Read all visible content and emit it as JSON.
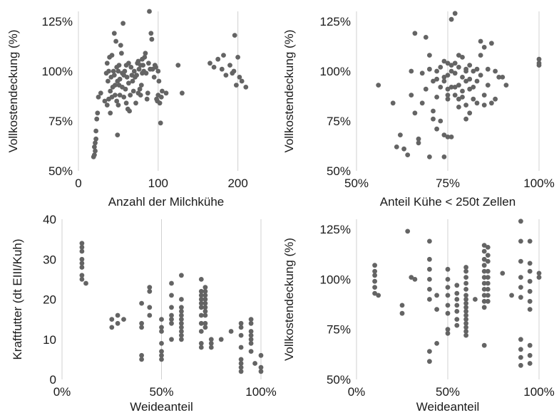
{
  "chart_data": [
    {
      "type": "scatter",
      "xlabel": "Anzahl der Milchkühe",
      "ylabel": "Vollkostendeckung  (%)",
      "xlim": [
        0,
        220
      ],
      "ylim": [
        50,
        130
      ],
      "xticks": [
        0,
        100,
        200
      ],
      "xtick_labels": [
        "0",
        "100",
        "200"
      ],
      "yticks": [
        50,
        75,
        100,
        125
      ],
      "ytick_labels": [
        "50%",
        "75%",
        "100%",
        "125%"
      ],
      "grid": "vertical",
      "series": [
        {
          "x": [
            19,
            20,
            20,
            21,
            21,
            22,
            22,
            23,
            24,
            25,
            28,
            33,
            35,
            36,
            36,
            37,
            38,
            38,
            39,
            40,
            40,
            41,
            42,
            42,
            43,
            44,
            45,
            45,
            46,
            46,
            47,
            48,
            48,
            49,
            49,
            50,
            50,
            51,
            51,
            52,
            52,
            53,
            54,
            55,
            55,
            56,
            57,
            57,
            58,
            59,
            60,
            60,
            61,
            62,
            63,
            63,
            64,
            65,
            66,
            67,
            68,
            69,
            70,
            71,
            72,
            73,
            74,
            75,
            75,
            76,
            77,
            78,
            78,
            79,
            80,
            80,
            81,
            82,
            83,
            84,
            85,
            86,
            87,
            88,
            89,
            90,
            91,
            92,
            93,
            95,
            96,
            97,
            98,
            99,
            100,
            100,
            101,
            102,
            103,
            104,
            105,
            110,
            125,
            130,
            165,
            170,
            175,
            180,
            182,
            185,
            190,
            193,
            195,
            196,
            198,
            200,
            202,
            205,
            210
          ],
          "y": [
            57,
            58,
            62,
            60,
            64,
            66,
            70,
            76,
            79,
            87,
            89,
            85,
            99,
            104,
            83,
            95,
            86,
            100,
            107,
            90,
            79,
            97,
            108,
            87,
            92,
            100,
            98,
            119,
            88,
            93,
            115,
            85,
            102,
            95,
            68,
            83,
            100,
            93,
            103,
            88,
            96,
            113,
            109,
            99,
            92,
            124,
            87,
            98,
            100,
            91,
            103,
            84,
            97,
            81,
            104,
            94,
            80,
            88,
            102,
            98,
            95,
            90,
            100,
            97,
            84,
            98,
            104,
            105,
            89,
            101,
            91,
            103,
            88,
            93,
            99,
            106,
            103,
            100,
            107,
            109,
            99,
            86,
            89,
            104,
            130,
            101,
            119,
            116,
            101,
            97,
            103,
            102,
            86,
            85,
            100,
            88,
            95,
            84,
            74,
            87,
            90,
            89,
            103,
            89,
            104,
            102,
            106,
            101,
            108,
            98,
            103,
            99,
            100,
            118,
            93,
            107,
            97,
            95,
            92
          ]
        }
      ]
    },
    {
      "type": "scatter",
      "xlabel": "Anteil Kühe < 250t Zellen",
      "ylabel": "Vollkostendeckung  (%)",
      "xlim": [
        50,
        100
      ],
      "ylim": [
        50,
        130
      ],
      "xticks": [
        50,
        75,
        100
      ],
      "xtick_labels": [
        "50%",
        "75%",
        "100%"
      ],
      "yticks": [
        50,
        75,
        100,
        125
      ],
      "ytick_labels": [
        "50%",
        "75%",
        "100%",
        "125%"
      ],
      "grid": "vertical",
      "series": [
        {
          "x": [
            56,
            60,
            61,
            62,
            63,
            64,
            65,
            65,
            66,
            66,
            67,
            67,
            68,
            68,
            69,
            69,
            70,
            70,
            70,
            71,
            71,
            71,
            72,
            72,
            72,
            72,
            73,
            73,
            73,
            74,
            74,
            74,
            74,
            74,
            75,
            75,
            75,
            75,
            75,
            75,
            76,
            76,
            76,
            76,
            76,
            77,
            77,
            77,
            77,
            77,
            78,
            78,
            78,
            78,
            78,
            79,
            79,
            79,
            79,
            80,
            80,
            80,
            80,
            80,
            81,
            81,
            81,
            81,
            82,
            82,
            82,
            83,
            83,
            83,
            84,
            84,
            84,
            85,
            85,
            85,
            86,
            86,
            87,
            87,
            88,
            88,
            89,
            90,
            91,
            100,
            100,
            100
          ],
          "y": [
            93,
            84,
            62,
            68,
            61,
            58,
            88,
            100,
            79,
            119,
            64,
            66,
            99,
            84,
            91,
            117,
            57,
            108,
            101,
            95,
            80,
            76,
            87,
            100,
            96,
            71,
            102,
            92,
            75,
            68,
            105,
            97,
            95,
            57,
            104,
            88,
            98,
            91,
            67,
            86,
            67,
            126,
            100,
            103,
            92,
            92,
            88,
            129,
            104,
            99,
            102,
            93,
            86,
            82,
            108,
            107,
            97,
            90,
            87,
            101,
            95,
            83,
            76,
            100,
            103,
            91,
            79,
            96,
            92,
            100,
            86,
            101,
            95,
            84,
            115,
            98,
            108,
            88,
            83,
            112,
            93,
            101,
            84,
            114,
            100,
            86,
            97,
            97,
            93,
            104,
            106,
            103
          ]
        }
      ]
    },
    {
      "type": "scatter",
      "xlabel": "Weideanteil",
      "ylabel": "Kraftfutter (dt EIII/Kuh)",
      "xlim": [
        0,
        100
      ],
      "ylim": [
        0,
        40
      ],
      "xticks": [
        0,
        50,
        100
      ],
      "xtick_labels": [
        "0%",
        "50%",
        "100%"
      ],
      "yticks": [
        0,
        10,
        20,
        30,
        40
      ],
      "ytick_labels": [
        "0",
        "10",
        "20",
        "30",
        "40"
      ],
      "grid": "vertical",
      "series": [
        {
          "x": [
            10,
            10,
            10,
            10,
            10,
            10,
            10,
            10,
            12,
            25,
            25,
            28,
            28,
            31,
            40,
            40,
            40,
            40,
            40,
            44,
            44,
            44,
            44,
            50,
            50,
            50,
            50,
            50,
            50,
            50,
            55,
            55,
            55,
            55,
            55,
            55,
            55,
            60,
            60,
            60,
            60,
            60,
            60,
            60,
            60,
            60,
            60,
            60,
            70,
            70,
            70,
            70,
            70,
            70,
            70,
            70,
            70,
            70,
            70,
            72,
            72,
            72,
            72,
            72,
            72,
            72,
            72,
            72,
            72,
            75,
            75,
            75,
            80,
            85,
            90,
            90,
            90,
            90,
            90,
            90,
            90,
            90,
            95,
            95,
            95,
            95,
            95,
            95,
            95,
            97,
            100,
            100,
            100
          ],
          "y": [
            34,
            33,
            32,
            30,
            29,
            28,
            26,
            25,
            24,
            13,
            15,
            14,
            16,
            15,
            19,
            14,
            13,
            5,
            6,
            18,
            23,
            22,
            16,
            15,
            13,
            12,
            9,
            7,
            6,
            5,
            24,
            21,
            18,
            16,
            15,
            14,
            10,
            26,
            20,
            18,
            17,
            16,
            15,
            14,
            13,
            12,
            11,
            10,
            25,
            22,
            21,
            20,
            19,
            18,
            16,
            14,
            12,
            9,
            8,
            23,
            22,
            21,
            20,
            19,
            18,
            17,
            16,
            14,
            13,
            10,
            9,
            8,
            10,
            12,
            13,
            14,
            11,
            8,
            5,
            4,
            3,
            2,
            15,
            14,
            12,
            11,
            10,
            9,
            7,
            4,
            6,
            3,
            2
          ]
        }
      ]
    },
    {
      "type": "scatter",
      "xlabel": "Weideanteil",
      "ylabel": "Vollkostendeckung  (%)",
      "xlim": [
        0,
        100
      ],
      "ylim": [
        50,
        130
      ],
      "xticks": [
        0,
        50,
        100
      ],
      "xtick_labels": [
        "0%",
        "50%",
        "100%"
      ],
      "yticks": [
        50,
        75,
        100,
        125
      ],
      "ytick_labels": [
        "50%",
        "75%",
        "100%",
        "125%"
      ],
      "grid": "vertical",
      "series": [
        {
          "x": [
            10,
            10,
            10,
            10,
            10,
            10,
            12,
            25,
            25,
            28,
            30,
            32,
            40,
            40,
            40,
            40,
            40,
            40,
            40,
            40,
            44,
            44,
            44,
            50,
            50,
            50,
            50,
            50,
            50,
            50,
            50,
            55,
            55,
            55,
            55,
            55,
            55,
            55,
            60,
            60,
            60,
            60,
            60,
            60,
            60,
            60,
            60,
            60,
            60,
            60,
            60,
            60,
            60,
            60,
            65,
            70,
            70,
            70,
            70,
            70,
            70,
            70,
            70,
            70,
            70,
            70,
            70,
            72,
            72,
            72,
            72,
            72,
            72,
            72,
            72,
            72,
            80,
            85,
            90,
            90,
            90,
            90,
            90,
            90,
            90,
            90,
            90,
            90,
            95,
            95,
            95,
            95,
            95,
            95,
            95,
            95,
            95,
            95,
            100,
            100
          ],
          "y": [
            107,
            104,
            102,
            99,
            96,
            93,
            92,
            87,
            83,
            124,
            101,
            100,
            119,
            110,
            105,
            100,
            95,
            90,
            64,
            59,
            92,
            85,
            68,
            105,
            100,
            96,
            92,
            87,
            83,
            75,
            73,
            97,
            93,
            90,
            87,
            84,
            80,
            77,
            106,
            104,
            101,
            98,
            95,
            92,
            90,
            88,
            86,
            84,
            82,
            80,
            78,
            76,
            74,
            72,
            90,
            117,
            114,
            110,
            107,
            104,
            101,
            98,
            95,
            92,
            89,
            86,
            67,
            116,
            112,
            109,
            104,
            101,
            98,
            95,
            92,
            89,
            103,
            92,
            129,
            119,
            109,
            101,
            96,
            91,
            70,
            65,
            61,
            57,
            119,
            108,
            104,
            99,
            94,
            89,
            85,
            67,
            62,
            58,
            103,
            101
          ]
        }
      ]
    }
  ]
}
